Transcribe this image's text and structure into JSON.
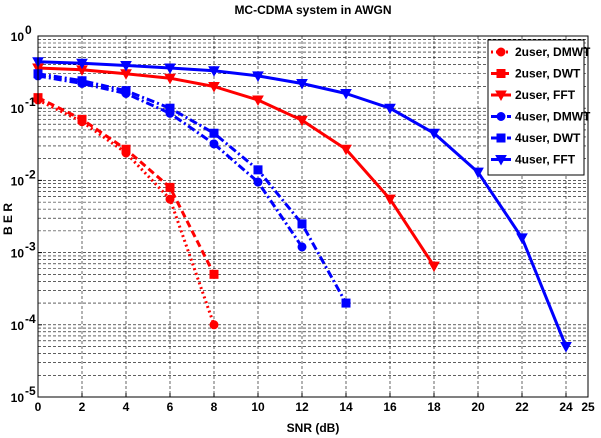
{
  "chart_data": {
    "type": "line",
    "title": "MC-CDMA system in AWGN",
    "xlabel": "SNR (dB)",
    "ylabel": "B E R",
    "y_scale": "log",
    "xlim": [
      0,
      25
    ],
    "ylim": [
      1e-05,
      1
    ],
    "x_ticks": [
      "0",
      "2",
      "4",
      "6",
      "8",
      "10",
      "12",
      "14",
      "16",
      "18",
      "20",
      "22",
      "24",
      "25"
    ],
    "y_tick_labels": [
      {
        "base": "10",
        "exp": "0",
        "value": 1
      },
      {
        "base": "10",
        "exp": "-1",
        "value": 0.1
      },
      {
        "base": "10",
        "exp": "-2",
        "value": 0.01
      },
      {
        "base": "10",
        "exp": "-3",
        "value": 0.001
      },
      {
        "base": "10",
        "exp": "-4",
        "value": 0.0001
      },
      {
        "base": "10",
        "exp": "-5",
        "value": 1e-05
      }
    ],
    "grid": true,
    "minor_grid": true,
    "legend_position": "top-right",
    "series": [
      {
        "name": "2user, DMWT",
        "color": "#ff0000",
        "marker": "circle",
        "dash": "dot",
        "x": [
          0,
          2,
          4,
          6,
          8
        ],
        "y": [
          0.13,
          0.065,
          0.024,
          0.0055,
          0.0001
        ]
      },
      {
        "name": "2user, DWT",
        "color": "#ff0000",
        "marker": "square",
        "dash": "dash",
        "x": [
          0,
          2,
          4,
          6,
          8
        ],
        "y": [
          0.14,
          0.07,
          0.027,
          0.008,
          0.0005
        ]
      },
      {
        "name": "2user, FFT",
        "color": "#ff0000",
        "marker": "triangle-down",
        "dash": "solid",
        "x": [
          0,
          2,
          4,
          6,
          8,
          10,
          12,
          14,
          16,
          18
        ],
        "y": [
          0.36,
          0.34,
          0.3,
          0.26,
          0.2,
          0.13,
          0.068,
          0.027,
          0.0055,
          0.00065
        ]
      },
      {
        "name": "4user, DMWT",
        "color": "#0000ff",
        "marker": "circle",
        "dash": "dashdot",
        "x": [
          0,
          2,
          4,
          6,
          8,
          10,
          12
        ],
        "y": [
          0.28,
          0.22,
          0.16,
          0.085,
          0.032,
          0.0095,
          0.0012
        ]
      },
      {
        "name": "4user, DWT",
        "color": "#0000ff",
        "marker": "square",
        "dash": "dashdot",
        "x": [
          0,
          2,
          4,
          6,
          8,
          10,
          12,
          14
        ],
        "y": [
          0.3,
          0.24,
          0.175,
          0.1,
          0.045,
          0.014,
          0.0025,
          0.0002
        ]
      },
      {
        "name": "4user, FFT",
        "color": "#0000ff",
        "marker": "triangle-down",
        "dash": "solid",
        "x": [
          0,
          2,
          4,
          6,
          8,
          10,
          12,
          14,
          16,
          18,
          20,
          22,
          24
        ],
        "y": [
          0.44,
          0.42,
          0.39,
          0.36,
          0.33,
          0.28,
          0.22,
          0.16,
          0.1,
          0.045,
          0.013,
          0.0016,
          5e-05
        ]
      }
    ]
  }
}
